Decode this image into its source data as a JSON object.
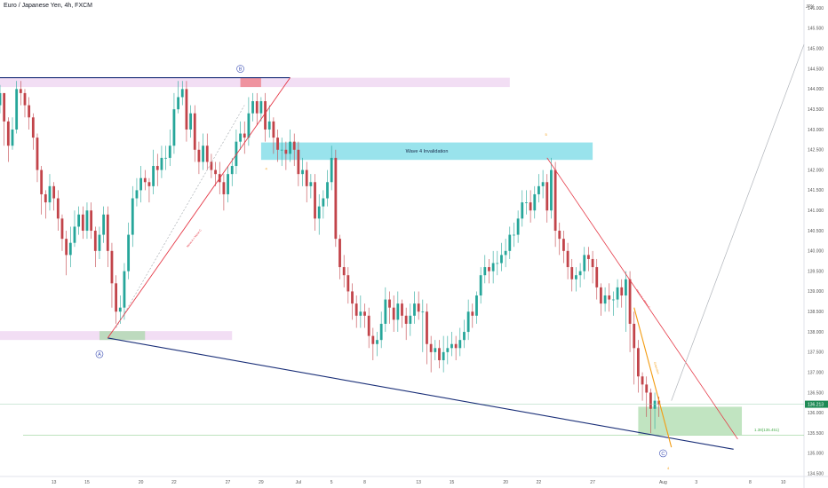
{
  "header": {
    "symbol_title": "Euro / Japanese Yen, 4h, FXCM"
  },
  "currency_label": "JPY",
  "last_price": {
    "value": "136.213",
    "bg": "#1e8a55"
  },
  "chart_data": {
    "type": "candlestick",
    "title": "Euro / Japanese Yen, 4h, FXCM",
    "ylabel": "JPY",
    "ylim": [
      134.45,
      146.2
    ],
    "y_ticks": [
      "135.000",
      "135.500",
      "136.000",
      "136.500",
      "137.000",
      "137.500",
      "138.000",
      "138.500",
      "139.000",
      "139.500",
      "140.000",
      "140.500",
      "141.000",
      "141.500",
      "142.000",
      "142.500",
      "143.000",
      "143.500",
      "144.000",
      "144.500",
      "145.000",
      "145.500",
      "146.000"
    ],
    "extra_ticks": [
      "134.500"
    ],
    "x_ticks": [
      "13",
      "15",
      "20",
      "22",
      "27",
      "29",
      "Jul",
      "5",
      "8",
      "13",
      "15",
      "20",
      "22",
      "27",
      "Aug",
      "3",
      "8",
      "10"
    ],
    "x_index": [
      13,
      21,
      34,
      42,
      55,
      63,
      72,
      80,
      88,
      101,
      109,
      122,
      130,
      143,
      160,
      168,
      181,
      189
    ],
    "x_range": [
      0,
      194
    ],
    "closes": [
      143.9,
      143.2,
      142.6,
      143.0,
      144.0,
      143.9,
      143.6,
      143.3,
      142.8,
      142.0,
      141.4,
      141.2,
      141.6,
      141.3,
      140.8,
      140.3,
      139.9,
      140.2,
      140.6,
      140.9,
      140.5,
      141.0,
      140.5,
      140.0,
      140.4,
      140.9,
      140.0,
      139.2,
      138.5,
      138.6,
      139.5,
      140.4,
      141.3,
      141.5,
      141.8,
      141.7,
      141.6,
      142.1,
      142.0,
      142.3,
      142.3,
      142.6,
      143.5,
      143.8,
      144.0,
      143.0,
      143.4,
      142.5,
      142.2,
      142.6,
      142.2,
      142.0,
      141.9,
      141.7,
      141.4,
      141.9,
      142.1,
      142.7,
      142.9,
      142.8,
      143.4,
      143.7,
      143.4,
      143.7,
      143.0,
      143.2,
      142.8,
      142.5,
      142.5,
      142.4,
      142.7,
      142.5,
      141.9,
      142.0,
      141.6,
      141.7,
      140.8,
      141.1,
      141.3,
      141.7,
      142.3,
      140.3,
      139.6,
      139.4,
      139.0,
      138.7,
      138.4,
      138.5,
      138.4,
      137.9,
      137.7,
      137.8,
      138.2,
      138.8,
      138.6,
      138.3,
      138.7,
      138.4,
      138.2,
      138.4,
      138.7,
      138.5,
      138.5,
      137.7,
      137.5,
      137.6,
      137.3,
      137.5,
      137.6,
      137.7,
      137.6,
      137.8,
      138.0,
      138.5,
      138.4,
      138.9,
      139.4,
      139.6,
      139.5,
      139.7,
      139.7,
      139.9,
      140.0,
      140.4,
      140.4,
      140.8,
      141.2,
      141.2,
      141.0,
      141.4,
      141.6,
      141.7,
      141.0,
      142.0,
      140.5,
      140.3,
      140.0,
      139.6,
      139.3,
      139.4,
      139.5,
      139.9,
      139.8,
      139.6,
      139.1,
      138.7,
      138.9,
      138.8,
      138.8,
      139.1,
      138.9,
      139.3,
      138.2,
      137.6,
      136.9,
      136.7,
      136.5,
      136.1,
      136.3,
      136.2
    ],
    "highs": [
      144.1,
      143.9,
      143.3,
      143.3,
      144.2,
      144.2,
      144.0,
      143.8,
      143.4,
      142.9,
      142.1,
      141.5,
      141.9,
      141.7,
      141.5,
      140.9,
      140.5,
      140.6,
      141.0,
      141.1,
      141.1,
      141.2,
      141.2,
      140.6,
      140.6,
      141.1,
      141.1,
      140.2,
      139.4,
      138.9,
      139.7,
      140.7,
      141.6,
      141.8,
      142.1,
      142.0,
      141.8,
      142.5,
      142.4,
      142.6,
      142.6,
      143.0,
      143.9,
      144.2,
      144.2,
      144.2,
      143.6,
      143.6,
      142.7,
      142.9,
      142.9,
      142.4,
      142.2,
      142.2,
      141.9,
      142.1,
      142.3,
      143.0,
      143.2,
      143.2,
      143.8,
      143.9,
      143.9,
      143.8,
      143.9,
      143.6,
      143.3,
      143.0,
      142.8,
      142.7,
      143.0,
      142.9,
      142.7,
      142.3,
      142.2,
      141.9,
      141.9,
      141.4,
      141.5,
      142.0,
      142.6,
      142.5,
      140.4,
      139.9,
      139.6,
      139.2,
      138.9,
      138.9,
      138.7,
      138.6,
      138.1,
      138.0,
      138.5,
      139.1,
      139.0,
      138.9,
      139.0,
      138.8,
      138.6,
      138.7,
      139.0,
      139.0,
      138.8,
      138.7,
      137.9,
      137.8,
      137.8,
      137.9,
      137.9,
      138.0,
      137.9,
      138.1,
      138.3,
      138.8,
      138.7,
      139.0,
      139.6,
      139.9,
      139.8,
      140.0,
      140.0,
      140.2,
      140.3,
      140.6,
      140.7,
      141.0,
      141.5,
      141.5,
      141.5,
      141.6,
      141.9,
      142.0,
      141.9,
      142.3,
      142.2,
      140.7,
      140.5,
      140.2,
      139.8,
      139.6,
      139.7,
      140.1,
      140.1,
      140.0,
      139.8,
      139.2,
      139.1,
      139.2,
      139.0,
      139.3,
      139.3,
      139.5,
      139.5,
      138.5,
      137.8,
      137.0,
      136.9,
      136.6,
      136.5,
      136.4
    ],
    "lows": [
      143.4,
      142.6,
      142.2,
      142.5,
      142.9,
      143.6,
      143.3,
      143.0,
      142.5,
      141.7,
      140.9,
      140.8,
      141.0,
      141.0,
      140.5,
      140.0,
      139.4,
      139.6,
      140.1,
      140.4,
      140.3,
      140.3,
      140.3,
      139.6,
      139.8,
      140.2,
      139.6,
      138.6,
      138.2,
      138.2,
      138.3,
      139.3,
      140.1,
      141.1,
      141.2,
      141.5,
      141.2,
      141.4,
      141.6,
      141.8,
      142.0,
      142.1,
      142.4,
      143.4,
      143.6,
      142.7,
      142.8,
      142.2,
      141.9,
      142.0,
      142.0,
      141.8,
      141.6,
      141.4,
      141.0,
      141.2,
      141.6,
      141.9,
      142.5,
      142.4,
      142.6,
      143.2,
      143.1,
      143.2,
      142.7,
      142.8,
      142.4,
      142.2,
      142.1,
      142.0,
      142.2,
      142.1,
      141.6,
      141.6,
      141.2,
      141.3,
      140.5,
      140.4,
      140.8,
      141.1,
      141.5,
      140.1,
      139.3,
      139.1,
      138.7,
      138.3,
      138.1,
      138.1,
      138.1,
      137.6,
      137.3,
      137.4,
      137.6,
      138.0,
      138.2,
      138.0,
      138.0,
      138.1,
      137.8,
      137.9,
      138.2,
      138.3,
      137.5,
      137.2,
      137.0,
      137.3,
      137.1,
      137.0,
      137.2,
      137.4,
      137.3,
      137.4,
      137.6,
      137.8,
      138.1,
      138.2,
      138.7,
      139.2,
      139.2,
      139.2,
      139.4,
      139.5,
      139.6,
      139.8,
      140.1,
      140.2,
      140.6,
      140.9,
      140.7,
      140.8,
      141.2,
      141.3,
      140.7,
      140.8,
      140.1,
      139.9,
      139.7,
      139.3,
      139.0,
      139.0,
      139.1,
      139.3,
      139.5,
      139.2,
      138.8,
      138.4,
      138.5,
      138.5,
      138.4,
      138.6,
      138.6,
      138.0,
      137.5,
      136.7,
      136.5,
      136.3,
      135.9,
      135.5,
      135.6,
      135.9
    ],
    "volume_shown": false
  },
  "annotations": {
    "wave_labels": [
      "A",
      "B",
      "C"
    ],
    "invalidation_text": "Wave 4 Invalidation",
    "small_labels": [
      "4",
      "5",
      "4"
    ],
    "fib_text": "1.38(135.451)",
    "trendline_a_text": "Move A = Move C",
    "trendline_c_text": "Move A = Move C",
    "orange_text": "Extension"
  },
  "colors": {
    "up": "#26a69a",
    "down": "#c2444a",
    "trend_navy": "#1a2f78",
    "trend_red": "#e53947",
    "orange": "#f39c12",
    "zone_pink": "#e9c8ec",
    "zone_cyan": "#8ee0ea",
    "zone_green": "#a6d9a6",
    "zone_red": "#ee7f8a"
  }
}
